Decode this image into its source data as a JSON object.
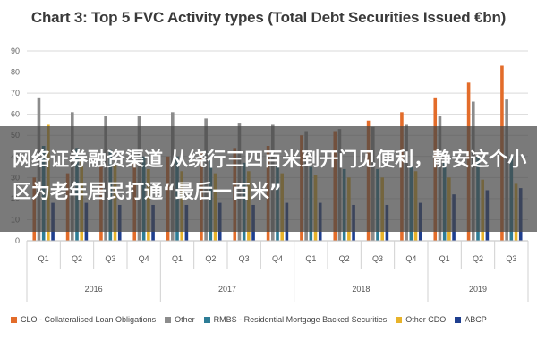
{
  "chart_data": {
    "type": "bar",
    "title": "Chart 3: Top 5 FVC Activity types (Total Debt Securities Issued €bn)",
    "ylim": [
      0,
      90
    ],
    "yticks": [
      0,
      10,
      20,
      30,
      40,
      50,
      60,
      70,
      80,
      90
    ],
    "grid": "horizontal",
    "legend_position": "bottom",
    "categories": [
      "Q1",
      "Q2",
      "Q3",
      "Q4",
      "Q1",
      "Q2",
      "Q3",
      "Q4",
      "Q1",
      "Q2",
      "Q3",
      "Q4",
      "Q1",
      "Q2",
      "Q3"
    ],
    "years": [
      {
        "label": "2016",
        "quarters": 4
      },
      {
        "label": "2017",
        "quarters": 4
      },
      {
        "label": "2018",
        "quarters": 4
      },
      {
        "label": "2019",
        "quarters": 3
      }
    ],
    "series": [
      {
        "name": "CLO - Collateralised Loan Obligations",
        "color": "#e36c2a",
        "values": [
          30,
          32,
          35,
          38,
          40,
          42,
          44,
          45,
          50,
          52,
          57,
          61,
          68,
          75,
          83
        ]
      },
      {
        "name": "Other",
        "color": "#8c8c8c",
        "values": [
          68,
          61,
          59,
          59,
          61,
          58,
          56,
          55,
          52,
          53,
          54,
          55,
          59,
          66,
          67
        ]
      },
      {
        "name": "RMBS - Residential Mortgage Backed Securities",
        "color": "#2e7d96",
        "values": [
          45,
          44,
          43,
          40,
          40,
          38,
          37,
          36,
          35,
          34,
          34,
          35,
          37,
          40,
          40
        ]
      },
      {
        "name": "Other CDO",
        "color": "#e8b32a",
        "values": [
          55,
          38,
          36,
          34,
          33,
          32,
          33,
          32,
          31,
          30,
          30,
          33,
          30,
          29,
          27
        ]
      },
      {
        "name": "ABCP",
        "color": "#1f3f8f",
        "values": [
          18,
          18,
          17,
          17,
          17,
          18,
          17,
          18,
          18,
          17,
          17,
          18,
          22,
          24,
          25
        ]
      }
    ]
  },
  "overlay_text": "网络证券融资渠道 从绕行三四百米到开门见便利，静安这个小区为老年居民打通“最后一百米”"
}
